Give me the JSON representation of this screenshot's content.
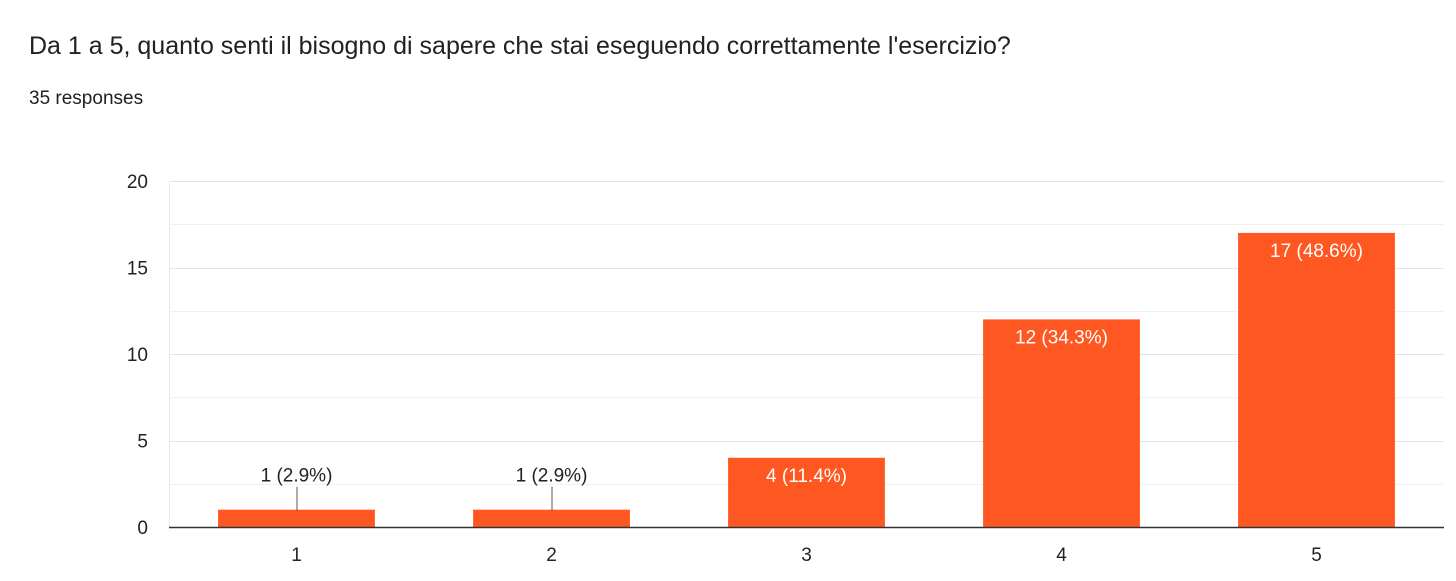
{
  "question": {
    "title": "Da 1 a 5, quanto senti il bisogno di sapere che stai eseguendo correttamente l'esercizio?",
    "response_count": "35 responses"
  },
  "chart_data": {
    "type": "bar",
    "title": "",
    "xlabel": "",
    "ylabel": "",
    "categories": [
      "1",
      "2",
      "3",
      "4",
      "5"
    ],
    "values": [
      1,
      1,
      4,
      12,
      17
    ],
    "data_labels": [
      "1 (2.9%)",
      "1 (2.9%)",
      "4 (11.4%)",
      "12 (34.3%)",
      "17 (48.6%)"
    ],
    "ylim": [
      0,
      20
    ],
    "yticks": [
      0,
      5,
      10,
      15,
      20
    ],
    "grid": true,
    "legend": "none",
    "bar_color": "#ff5722",
    "grid_color": "#e8e8e8",
    "axis_color": "#333333"
  }
}
